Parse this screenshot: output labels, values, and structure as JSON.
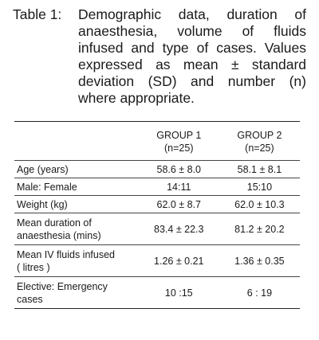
{
  "caption": {
    "label": "Table 1:",
    "text": "Demographic data, duration of anaesthesia, volume of fluids infused and type of cases. Values expressed as mean ± standard deviation (SD) and number (n) where appropriate."
  },
  "table": {
    "headers": [
      {
        "title": "GROUP 1",
        "n": "(n=25)"
      },
      {
        "title": "GROUP 2",
        "n": "(n=25)"
      }
    ],
    "rows": [
      {
        "label_lines": [
          "Age (years)"
        ],
        "g1": "58.6 ± 8.0",
        "g2": "58.1 ± 8.1"
      },
      {
        "label_lines": [
          "Male: Female"
        ],
        "g1": "14:11",
        "g2": "15:10"
      },
      {
        "label_lines": [
          "Weight (kg)"
        ],
        "g1": "62.0 ± 8.7",
        "g2": "62.0 ± 10.3"
      },
      {
        "label_lines": [
          "Mean duration of",
          "anaesthesia (mins)"
        ],
        "g1": "83.4 ± 22.3",
        "g2": "81.2 ± 20.2"
      },
      {
        "label_lines": [
          "Mean IV fluids infused",
          "( litres )"
        ],
        "g1": "1.26 ± 0.21",
        "g2": "1.36 ± 0.35"
      },
      {
        "label_lines": [
          "Elective: Emergency",
          "cases"
        ],
        "g1": "10 :15",
        "g2": "6 : 19"
      }
    ]
  }
}
